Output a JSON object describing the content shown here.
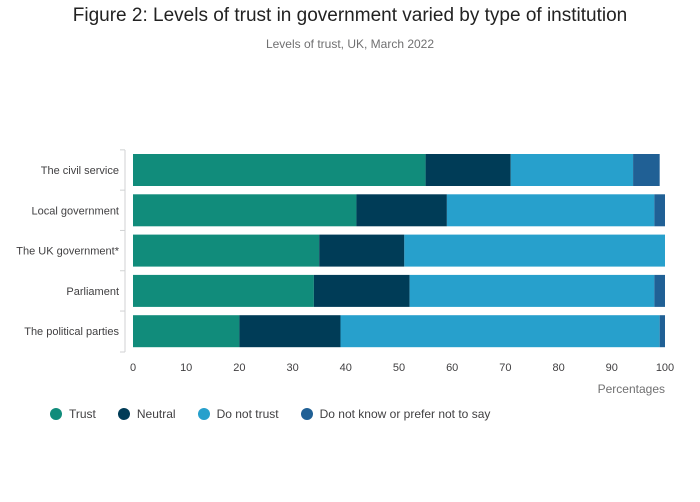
{
  "chart_data": {
    "type": "bar",
    "orientation": "horizontal",
    "stacked": true,
    "title": "Figure 2: Levels of trust in government varied by type of institution",
    "subtitle": "Levels of trust, UK, March 2022",
    "xlabel": "Percentages",
    "ylabel": "",
    "xlim": [
      0,
      100
    ],
    "x_ticks": [
      0,
      10,
      20,
      30,
      40,
      50,
      60,
      70,
      80,
      90,
      100
    ],
    "grid": false,
    "legend_position": "bottom-left",
    "categories": [
      "The civil service",
      "Local government",
      "The UK government*",
      "Parliament",
      "The political parties"
    ],
    "series": [
      {
        "name": "Trust",
        "color": "#118c7b",
        "values": [
          55,
          42,
          35,
          34,
          20
        ]
      },
      {
        "name": "Neutral",
        "color": "#003c57",
        "values": [
          16,
          17,
          16,
          18,
          19
        ]
      },
      {
        "name": "Do not trust",
        "color": "#27a0cc",
        "values": [
          23,
          39,
          49,
          46,
          60
        ]
      },
      {
        "name": "Do not know or prefer not to say",
        "color": "#206095",
        "values": [
          5,
          2,
          0,
          2,
          1
        ]
      }
    ]
  }
}
